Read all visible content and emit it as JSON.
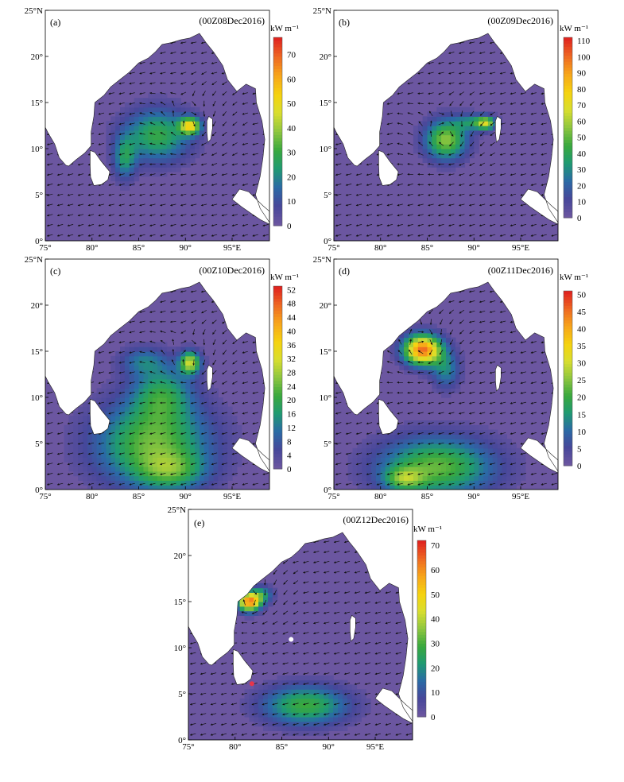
{
  "colorbar_unit": "kW m⁻¹",
  "colors": {
    "land_background": "#ffffff",
    "sea_base": "#6b56a0",
    "colormap": [
      "#6b56a0",
      "#46479a",
      "#2a6aa6",
      "#1f9a72",
      "#39a83e",
      "#8dc63f",
      "#d8de2f",
      "#f5d20f",
      "#f7a71a",
      "#ef6b22",
      "#e0251f"
    ],
    "arrow": "#111111",
    "track_point_white": "#ffffff",
    "track_point_red": "#e8354a"
  },
  "axes": {
    "x_ticks": [
      "75°",
      "80°",
      "85°",
      "90°",
      "95°E"
    ],
    "y_ticks": [
      "0°",
      "5°",
      "10°",
      "15°",
      "20°",
      "25°N"
    ],
    "x_values": [
      75,
      80,
      85,
      90,
      95
    ],
    "y_values": [
      0,
      5,
      10,
      15,
      20,
      25
    ],
    "xlim": [
      75,
      99
    ],
    "ylim": [
      0,
      25
    ]
  },
  "panels": [
    {
      "id": "a",
      "label": "(a)",
      "time": "(00Z08Dec2016)",
      "colorbar": {
        "ticks": [
          "0",
          "10",
          "20",
          "30",
          "40",
          "50",
          "60",
          "70"
        ],
        "values": [
          0,
          10,
          20,
          30,
          40,
          50,
          60,
          70
        ],
        "max": 77
      },
      "blobs": [
        {
          "lon": 87.0,
          "lat": 11.5,
          "slon": 3.5,
          "slat": 2.8,
          "amp": 0.38
        },
        {
          "lon": 90.5,
          "lat": 12.5,
          "slon": 1.1,
          "slat": 0.9,
          "amp": 0.62
        },
        {
          "lon": 83.5,
          "lat": 9.0,
          "slon": 1.2,
          "slat": 2.3,
          "amp": 0.28
        }
      ]
    },
    {
      "id": "b",
      "label": "(b)",
      "time": "(00Z09Dec2016)",
      "colorbar": {
        "ticks": [
          "0",
          "10",
          "20",
          "30",
          "40",
          "50",
          "60",
          "70",
          "80",
          "90",
          "100",
          "110"
        ],
        "values": [
          0,
          10,
          20,
          30,
          40,
          50,
          60,
          70,
          80,
          90,
          100,
          110
        ],
        "max": 112
      },
      "blobs": [
        {
          "lon": 87.0,
          "lat": 11.0,
          "slon": 2.2,
          "slat": 2.1,
          "amp": 0.5
        },
        {
          "lon": 91.3,
          "lat": 12.8,
          "slon": 1.0,
          "slat": 0.7,
          "amp": 0.5
        },
        {
          "lon": 89.8,
          "lat": 12.9,
          "slon": 1.8,
          "slat": 0.9,
          "amp": 0.25
        }
      ]
    },
    {
      "id": "c",
      "label": "(c)",
      "time": "(00Z10Dec2016)",
      "colorbar": {
        "ticks": [
          "0",
          "4",
          "8",
          "12",
          "16",
          "20",
          "24",
          "28",
          "32",
          "36",
          "40",
          "44",
          "48",
          "52"
        ],
        "values": [
          0,
          4,
          8,
          12,
          16,
          20,
          24,
          28,
          32,
          36,
          40,
          44,
          48,
          52
        ],
        "max": 53
      },
      "blobs": [
        {
          "lon": 86.5,
          "lat": 5.0,
          "slon": 6.0,
          "slat": 4.5,
          "amp": 0.45
        },
        {
          "lon": 88.5,
          "lat": 2.0,
          "slon": 3.5,
          "slat": 2.0,
          "amp": 0.25
        },
        {
          "lon": 87.5,
          "lat": 10.5,
          "slon": 3.2,
          "slat": 3.0,
          "amp": 0.3
        },
        {
          "lon": 90.5,
          "lat": 13.8,
          "slon": 1.1,
          "slat": 1.2,
          "amp": 0.55
        },
        {
          "lon": 85.5,
          "lat": 14.0,
          "slon": 2.5,
          "slat": 1.5,
          "amp": 0.2
        }
      ]
    },
    {
      "id": "d",
      "label": "(d)",
      "time": "(00Z11Dec2016)",
      "colorbar": {
        "ticks": [
          "0",
          "5",
          "10",
          "15",
          "20",
          "25",
          "30",
          "35",
          "40",
          "45",
          "50"
        ],
        "values": [
          0,
          5,
          10,
          15,
          20,
          25,
          30,
          35,
          40,
          45,
          50
        ],
        "max": 51
      },
      "blobs": [
        {
          "lon": 84.5,
          "lat": 15.2,
          "slon": 2.0,
          "slat": 1.6,
          "amp": 0.9
        },
        {
          "lon": 87.0,
          "lat": 13.0,
          "slon": 1.5,
          "slat": 2.0,
          "amp": 0.25
        },
        {
          "lon": 86.0,
          "lat": 2.5,
          "slon": 6.0,
          "slat": 3.2,
          "amp": 0.45
        },
        {
          "lon": 82.5,
          "lat": 1.2,
          "slon": 2.0,
          "slat": 1.2,
          "amp": 0.3
        }
      ]
    },
    {
      "id": "e",
      "label": "(e)",
      "time": "(00Z12Dec2016)",
      "colorbar": {
        "ticks": [
          "0",
          "10",
          "20",
          "30",
          "40",
          "50",
          "60",
          "70"
        ],
        "values": [
          0,
          10,
          20,
          30,
          40,
          50,
          60,
          70
        ],
        "max": 72
      },
      "blobs": [
        {
          "lon": 81.5,
          "lat": 15.0,
          "slon": 1.2,
          "slat": 1.0,
          "amp": 0.85
        },
        {
          "lon": 82.8,
          "lat": 15.8,
          "slon": 1.2,
          "slat": 0.9,
          "amp": 0.3
        },
        {
          "lon": 87.5,
          "lat": 3.8,
          "slon": 4.5,
          "slat": 2.1,
          "amp": 0.4
        }
      ],
      "markers": [
        {
          "lon": 86.0,
          "lat": 10.9,
          "color": "#ffffff"
        },
        {
          "lon": 81.8,
          "lat": 6.1,
          "color": "#e8354a"
        }
      ]
    }
  ]
}
